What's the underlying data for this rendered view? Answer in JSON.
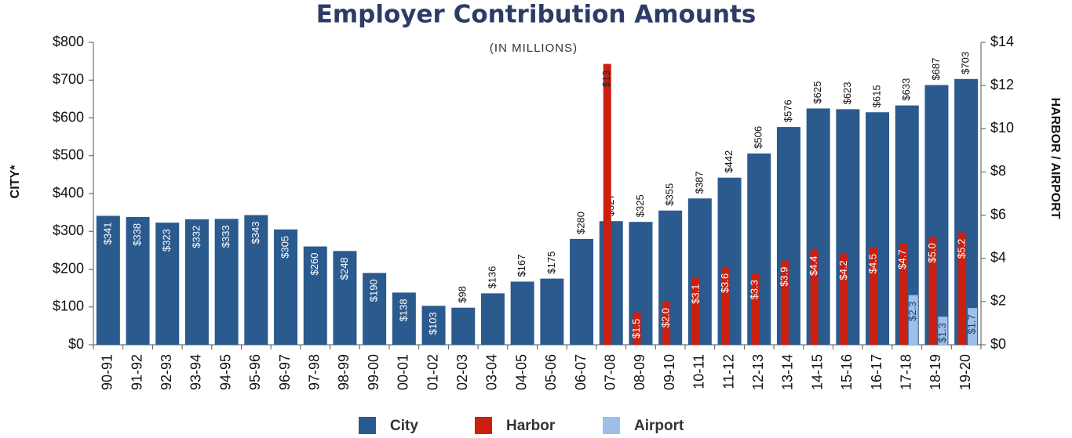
{
  "chart_data": {
    "type": "bar",
    "title": "Employer Contribution Amounts",
    "subtitle": "(IN MILLIONS)",
    "ylabel": "CITY*",
    "y2label": "HARBOR / AIRPORT",
    "categories": [
      "90-91",
      "91-92",
      "92-93",
      "93-94",
      "94-95",
      "95-96",
      "96-97",
      "97-98",
      "98-99",
      "99-00",
      "00-01",
      "01-02",
      "02-03",
      "03-04",
      "04-05",
      "05-06",
      "06-07",
      "07-08",
      "08-09",
      "09-10",
      "10-11",
      "11-12",
      "12-13",
      "13-14",
      "14-15",
      "15-16",
      "16-17",
      "17-18",
      "18-19",
      "19-20"
    ],
    "series": [
      {
        "name": "City",
        "color": "#2b5a8e",
        "values": [
          341,
          338,
          323,
          332,
          333,
          343,
          305,
          260,
          248,
          190,
          138,
          103,
          98,
          136,
          167,
          175,
          280,
          327,
          325,
          355,
          387,
          442,
          506,
          576,
          625,
          623,
          615,
          633,
          687,
          703
        ],
        "value_labels": [
          "$341",
          "$338",
          "$323",
          "$332",
          "$333",
          "$343",
          "$305",
          "$260",
          "$248",
          "$190",
          "$138",
          "$103",
          "$98",
          "$136",
          "$167",
          "$175",
          "$280",
          "$327",
          "$325",
          "$355",
          "$387",
          "$442",
          "$506",
          "$576",
          "$625",
          "$623",
          "$615",
          "$633",
          "$687",
          "$703"
        ]
      },
      {
        "name": "Harbor",
        "color": "#cc1f10",
        "axis": "y2",
        "values": [
          null,
          null,
          null,
          null,
          null,
          null,
          null,
          null,
          null,
          null,
          null,
          null,
          null,
          null,
          null,
          null,
          null,
          13,
          1.5,
          2.0,
          3.1,
          3.6,
          3.3,
          3.9,
          4.4,
          4.2,
          4.5,
          4.7,
          5.0,
          5.2
        ],
        "value_labels": [
          null,
          null,
          null,
          null,
          null,
          null,
          null,
          null,
          null,
          null,
          null,
          null,
          null,
          null,
          null,
          null,
          null,
          "$13",
          "$1.5",
          "$2.0",
          "$3.1",
          "$3.6",
          "$3.3",
          "$3.9",
          "$4.4",
          "$4.2",
          "$4.5",
          "$4.7",
          "$5.0",
          "$5.2"
        ]
      },
      {
        "name": "Airport",
        "color": "#9dbfe8",
        "axis": "y2",
        "values": [
          null,
          null,
          null,
          null,
          null,
          null,
          null,
          null,
          null,
          null,
          null,
          null,
          null,
          null,
          null,
          null,
          null,
          null,
          null,
          null,
          null,
          null,
          null,
          null,
          null,
          null,
          null,
          2.3,
          1.3,
          1.7
        ],
        "value_labels": [
          null,
          null,
          null,
          null,
          null,
          null,
          null,
          null,
          null,
          null,
          null,
          null,
          null,
          null,
          null,
          null,
          null,
          null,
          null,
          null,
          null,
          null,
          null,
          null,
          null,
          null,
          null,
          "$2.3",
          "$1.3",
          "$1.7"
        ]
      }
    ],
    "ylim": [
      0,
      800
    ],
    "yticks": [
      {
        "value": 0,
        "label": "$0"
      },
      {
        "value": 100,
        "label": "$100"
      },
      {
        "value": 200,
        "label": "$200"
      },
      {
        "value": 300,
        "label": "$300"
      },
      {
        "value": 400,
        "label": "$400"
      },
      {
        "value": 500,
        "label": "$500"
      },
      {
        "value": 600,
        "label": "$600"
      },
      {
        "value": 700,
        "label": "$700"
      },
      {
        "value": 800,
        "label": "$800"
      }
    ],
    "y2lim": [
      0,
      14
    ],
    "y2ticks": [
      {
        "value": 0,
        "label": "$0"
      },
      {
        "value": 2,
        "label": "$2"
      },
      {
        "value": 4,
        "label": "$4"
      },
      {
        "value": 6,
        "label": "$6"
      },
      {
        "value": 8,
        "label": "$8"
      },
      {
        "value": 10,
        "label": "$10"
      },
      {
        "value": 12,
        "label": "$12"
      },
      {
        "value": 14,
        "label": "$14"
      }
    ],
    "grid": false
  }
}
